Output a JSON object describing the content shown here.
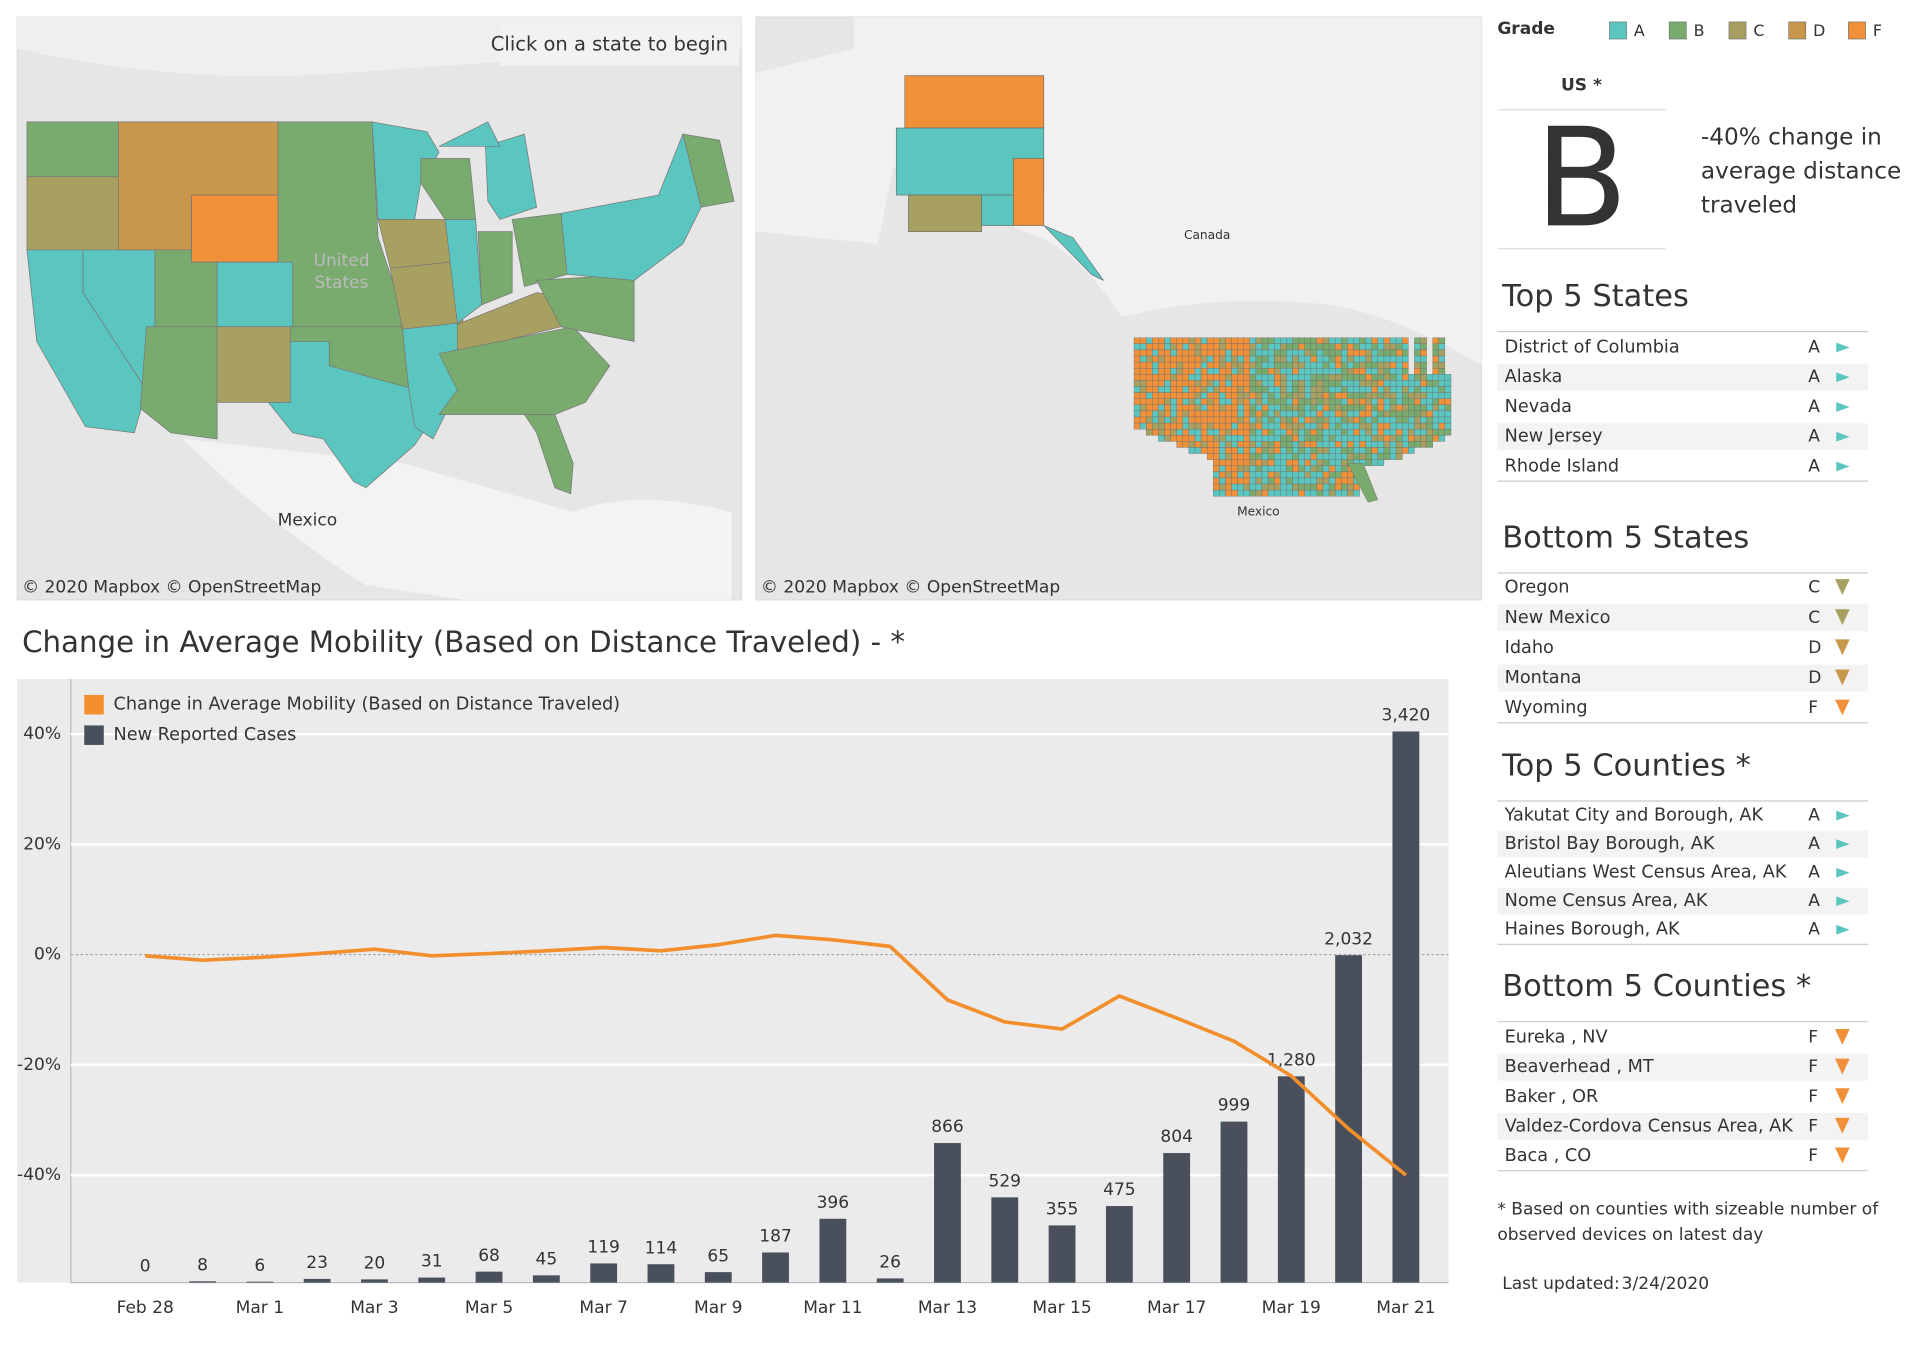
{
  "map_left": {
    "hint": "Click on a state to begin",
    "attribution": "© 2020 Mapbox © OpenStreetMap",
    "labels": [
      "United",
      "States",
      "Mexico"
    ]
  },
  "map_right": {
    "attribution": "© 2020 Mapbox © OpenStreetMap",
    "labels": [
      "Canada",
      "Mexico"
    ]
  },
  "grade_legend": {
    "title": "Grade",
    "items": [
      {
        "label": "A",
        "color": "#5bc6c0"
      },
      {
        "label": "B",
        "color": "#7aab6e"
      },
      {
        "label": "C",
        "color": "#a8a060"
      },
      {
        "label": "D",
        "color": "#c9974c"
      },
      {
        "label": "F",
        "color": "#f0913a"
      }
    ]
  },
  "summary": {
    "region": "US *",
    "grade": "B",
    "description_lines": [
      "-40% change in",
      "average distance",
      "traveled"
    ]
  },
  "lists": [
    {
      "title": "Top 5 States",
      "direction": "top",
      "rows": [
        {
          "name": "District of Columbia",
          "grade": "A"
        },
        {
          "name": "Alaska",
          "grade": "A"
        },
        {
          "name": "Nevada",
          "grade": "A"
        },
        {
          "name": "New Jersey",
          "grade": "A"
        },
        {
          "name": "Rhode Island",
          "grade": "A"
        }
      ]
    },
    {
      "title": "Bottom 5 States",
      "direction": "bottom",
      "rows": [
        {
          "name": "Oregon",
          "grade": "C"
        },
        {
          "name": "New Mexico",
          "grade": "C"
        },
        {
          "name": "Idaho",
          "grade": "D"
        },
        {
          "name": "Montana",
          "grade": "D"
        },
        {
          "name": "Wyoming",
          "grade": "F"
        }
      ]
    },
    {
      "title": "Top 5 Counties *",
      "direction": "top",
      "rows": [
        {
          "name": "Yakutat City and Borough, AK",
          "grade": "A"
        },
        {
          "name": "Bristol Bay Borough, AK",
          "grade": "A"
        },
        {
          "name": "Aleutians West Census Area, AK",
          "grade": "A"
        },
        {
          "name": "Nome Census Area, AK",
          "grade": "A"
        },
        {
          "name": "Haines Borough, AK",
          "grade": "A"
        }
      ]
    },
    {
      "title": "Bottom 5 Counties *",
      "direction": "bottom",
      "rows": [
        {
          "name": "Eureka , NV",
          "grade": "F"
        },
        {
          "name": "Beaverhead , MT",
          "grade": "F"
        },
        {
          "name": "Baker , OR",
          "grade": "F"
        },
        {
          "name": "Valdez-Cordova Census Area, AK",
          "grade": "F"
        },
        {
          "name": "Baca , CO",
          "grade": "F"
        }
      ]
    }
  ],
  "footnote_lines": [
    "* Based on counties with sizeable number of",
    "observed devices on latest day"
  ],
  "last_updated": {
    "label": "Last updated:",
    "value": "3/24/2020"
  },
  "chart_data": {
    "type": "bar-line",
    "title": "Change in Average Mobility (Based on Distance Traveled) -  *",
    "categories": [
      "Feb 28",
      null,
      "Mar 1",
      null,
      "Mar 3",
      null,
      "Mar 5",
      null,
      "Mar 7",
      null,
      "Mar 9",
      null,
      "Mar 11",
      null,
      "Mar 13",
      null,
      "Mar 15",
      null,
      "Mar 17",
      null,
      "Mar 19",
      null,
      "Mar 21"
    ],
    "series": [
      {
        "name": "Change in Average Mobility (Based on Distance Traveled)",
        "kind": "line",
        "color": "#f28e2b",
        "values": [
          -0.2,
          -1,
          -0.5,
          0.2,
          1,
          -0.2,
          0.2,
          0.7,
          1.3,
          0.7,
          1.8,
          3.5,
          2.7,
          1.5,
          -8.2,
          -12.2,
          -13.5,
          -7.5,
          -11.5,
          -15.7,
          -22,
          -31.6,
          -40
        ]
      },
      {
        "name": "New Reported Cases",
        "kind": "bar",
        "axis": "y2",
        "color": "#4a4f5c",
        "values": [
          0,
          8,
          6,
          23,
          20,
          31,
          68,
          45,
          119,
          114,
          65,
          187,
          396,
          26,
          866,
          529,
          355,
          475,
          804,
          999,
          1280,
          2032,
          3420
        ],
        "value_labels": [
          "0",
          "8",
          "6",
          "23",
          "20",
          "31",
          "68",
          "45",
          "119",
          "114",
          "65",
          "187",
          "396",
          "26",
          "866",
          "529",
          "355",
          "475",
          "804",
          "999",
          "1,280",
          "2,032",
          "3,420"
        ]
      }
    ],
    "ylim": [
      -59.5,
      50
    ],
    "yticks": [
      {
        "value": 40,
        "label": "40%"
      },
      {
        "value": 20,
        "label": "20%"
      },
      {
        "value": 0,
        "label": "0%"
      },
      {
        "value": -20,
        "label": "-20%"
      },
      {
        "value": -40,
        "label": "-40%"
      }
    ],
    "y2lim": [
      0,
      3745
    ],
    "grid": true,
    "legend": "top-left"
  }
}
